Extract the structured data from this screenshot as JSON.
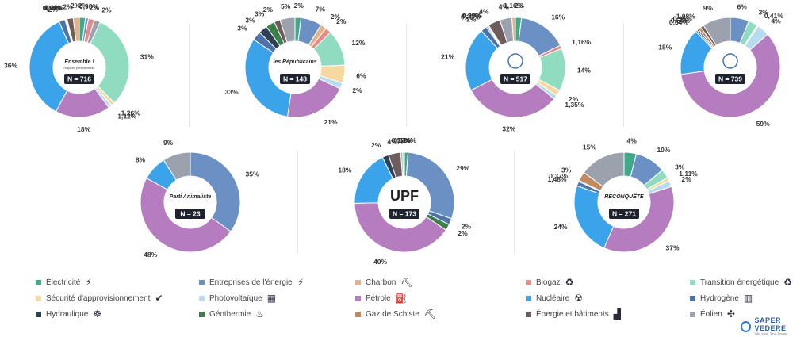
{
  "colors": {
    "electricite": "#3fa98a",
    "entreprises": "#6a90c4",
    "charbon": "#e0b48a",
    "biogaz": "#e88a85",
    "transition": "#8fdcc0",
    "securite": "#f6d9a0",
    "photovoltaique": "#b8dcef",
    "petrole": "#b57cc0",
    "nucleaire": "#3aa3ea",
    "hydrogene": "#4d72a8",
    "hydraulique": "#2f4155",
    "geothermie": "#3c7f4a",
    "gaz_schiste": "#c08a5e",
    "energie_batiments": "#6e5d5c",
    "eolien": "#9ba2ad"
  },
  "legend": [
    {
      "key": "electricite",
      "label": "Électricité",
      "icon": "plug-icon",
      "glyph": "⚡"
    },
    {
      "key": "entreprises",
      "label": "Entreprises de l'énergie",
      "icon": "lightning-icon",
      "glyph": "⚡"
    },
    {
      "key": "charbon",
      "label": "Charbon",
      "icon": "coal-cart-icon",
      "glyph": "⛏"
    },
    {
      "key": "biogaz",
      "label": "Biogaz",
      "icon": "biogas-plant-icon",
      "glyph": "♻"
    },
    {
      "key": "transition",
      "label": "Transition énergétique",
      "icon": "recycle-icon",
      "glyph": "♻"
    },
    {
      "key": "securite",
      "label": "Sécurité d'approvisionnement",
      "icon": "shield-icon",
      "glyph": "✔"
    },
    {
      "key": "photovoltaique",
      "label": "Photovoltaïque",
      "icon": "solar-panel-icon",
      "glyph": "▦"
    },
    {
      "key": "petrole",
      "label": "Pétrole",
      "icon": "fuel-pump-icon",
      "glyph": "⛽"
    },
    {
      "key": "nucleaire",
      "label": "Nucléaire",
      "icon": "nuclear-plant-icon",
      "glyph": "☢"
    },
    {
      "key": "hydrogene",
      "label": "Hydrogène",
      "icon": "hydrogen-tank-icon",
      "glyph": "▥"
    },
    {
      "key": "hydraulique",
      "label": "Hydraulique",
      "icon": "water-wheel-icon",
      "glyph": "☸"
    },
    {
      "key": "geothermie",
      "label": "Géothermie",
      "icon": "geothermal-icon",
      "glyph": "♨"
    },
    {
      "key": "gaz_schiste",
      "label": "Gaz de Schiste",
      "icon": "drill-icon",
      "glyph": "⛏"
    },
    {
      "key": "energie_batiments",
      "label": "Énergie et bâtiments",
      "icon": "buildings-icon",
      "glyph": "▟"
    },
    {
      "key": "eolien",
      "label": "Éolien",
      "icon": "wind-turbine-icon",
      "glyph": "✣"
    }
  ],
  "brand": {
    "name": "SAPER VEDERE",
    "tagline": "We see. You know."
  },
  "chart_data": [
    {
      "type": "pie",
      "title": "Ensemble !",
      "subtitle": "majorité présidentielle",
      "n_label": "N = 716",
      "logo": "ensemble-logo",
      "slices": [
        {
          "key": "electricite",
          "label": "2%",
          "value": 2
        },
        {
          "key": "entreprises",
          "label": "0,98%",
          "value": 0.98
        },
        {
          "key": "biogaz",
          "label": "2%",
          "value": 2
        },
        {
          "key": "eolien",
          "label": "2%",
          "value": 2
        },
        {
          "key": "transition",
          "label": "31%",
          "value": 31
        },
        {
          "key": "securite",
          "label": "1,26%",
          "value": 1.26
        },
        {
          "key": "photovoltaique",
          "label": "1,12%",
          "value": 1.12
        },
        {
          "key": "petrole",
          "label": "18%",
          "value": 18
        },
        {
          "key": "nucleaire",
          "label": "36%",
          "value": 36
        },
        {
          "key": "hydrogene",
          "label": "2%",
          "value": 2
        },
        {
          "key": "hydraulique",
          "label": "0,14%",
          "value": 0.14
        },
        {
          "key": "geothermie",
          "label": "0,28%",
          "value": 0.28
        },
        {
          "key": "gaz_schiste",
          "label": "0,28%",
          "value": 0.28
        },
        {
          "key": "energie_batiments",
          "label": "2%",
          "value": 2
        },
        {
          "key": "charbon",
          "label": "2%",
          "value": 2
        }
      ]
    },
    {
      "type": "pie",
      "title": "les Républicains",
      "n_label": "N = 148",
      "logo": "lr-logo",
      "slices": [
        {
          "key": "electricite",
          "label": "2%",
          "value": 2
        },
        {
          "key": "entreprises",
          "label": "7%",
          "value": 7
        },
        {
          "key": "charbon",
          "label": "2%",
          "value": 2
        },
        {
          "key": "biogaz",
          "label": "2%",
          "value": 2
        },
        {
          "key": "transition",
          "label": "12%",
          "value": 12
        },
        {
          "key": "securite",
          "label": "6%",
          "value": 6
        },
        {
          "key": "photovoltaique",
          "label": "2%",
          "value": 2
        },
        {
          "key": "petrole",
          "label": "21%",
          "value": 21
        },
        {
          "key": "nucleaire",
          "label": "33%",
          "value": 33
        },
        {
          "key": "hydrogene",
          "label": "3%",
          "value": 3
        },
        {
          "key": "hydraulique",
          "label": "3%",
          "value": 3
        },
        {
          "key": "geothermie",
          "label": "3%",
          "value": 3
        },
        {
          "key": "energie_batiments",
          "label": "2%",
          "value": 2
        },
        {
          "key": "eolien",
          "label": "5%",
          "value": 5
        }
      ]
    },
    {
      "type": "pie",
      "title": "",
      "n_label": "N = 517",
      "logo": "eelv-logo",
      "slices": [
        {
          "key": "electricite",
          "label": "2%",
          "value": 2
        },
        {
          "key": "entreprises",
          "label": "16%",
          "value": 16
        },
        {
          "key": "biogaz",
          "label": "1,16%",
          "value": 1.16
        },
        {
          "key": "transition",
          "label": "14%",
          "value": 14
        },
        {
          "key": "securite",
          "label": "2%",
          "value": 2
        },
        {
          "key": "photovoltaique",
          "label": "1,35%",
          "value": 1.35
        },
        {
          "key": "petrole",
          "label": "32%",
          "value": 32
        },
        {
          "key": "nucleaire",
          "label": "21%",
          "value": 21
        },
        {
          "key": "hydrogene",
          "label": "2%",
          "value": 2
        },
        {
          "key": "hydraulique",
          "label": "0,39%",
          "value": 0.39
        },
        {
          "key": "geothermie",
          "label": "0,39%",
          "value": 0.39
        },
        {
          "key": "gaz_schiste",
          "label": "0,19%",
          "value": 0.19
        },
        {
          "key": "energie_batiments",
          "label": "4%",
          "value": 4
        },
        {
          "key": "eolien",
          "label": "4%",
          "value": 4
        },
        {
          "key": "charbon",
          "label": "1,16%",
          "value": 1.16
        }
      ]
    },
    {
      "type": "pie",
      "title": "",
      "n_label": "N = 739",
      "logo": "rn-logo",
      "slices": [
        {
          "key": "entreprises",
          "label": "6%",
          "value": 6
        },
        {
          "key": "transition",
          "label": "3%",
          "value": 3
        },
        {
          "key": "securite",
          "label": "0,41%",
          "value": 0.41
        },
        {
          "key": "photovoltaique",
          "label": "4%",
          "value": 4
        },
        {
          "key": "petrole",
          "label": "59%",
          "value": 59
        },
        {
          "key": "nucleaire",
          "label": "15%",
          "value": 15
        },
        {
          "key": "hydrogene",
          "label": "0,54%",
          "value": 0.54
        },
        {
          "key": "hydraulique",
          "label": "0,54%",
          "value": 0.54
        },
        {
          "key": "gaz_schiste",
          "label": "0,95%",
          "value": 0.95
        },
        {
          "key": "energie_batiments",
          "label": "1,08%",
          "value": 1.08
        },
        {
          "key": "eolien",
          "label": "9%",
          "value": 9
        }
      ]
    },
    {
      "type": "pie",
      "title": "Parti Animaliste",
      "n_label": "N = 23",
      "logo": "animaliste-logo",
      "slices": [
        {
          "key": "entreprises",
          "label": "35%",
          "value": 35
        },
        {
          "key": "petrole",
          "label": "48%",
          "value": 48
        },
        {
          "key": "nucleaire",
          "label": "8%",
          "value": 8
        },
        {
          "key": "eolien",
          "label": "9%",
          "value": 9
        }
      ]
    },
    {
      "type": "pie",
      "title": "UPF",
      "n_label": "N = 173",
      "logo": "upf-logo",
      "slices": [
        {
          "key": "electricite",
          "label": "1,16%",
          "value": 1.16
        },
        {
          "key": "entreprises",
          "label": "29%",
          "value": 29
        },
        {
          "key": "hydrogene",
          "label": "2%",
          "value": 2
        },
        {
          "key": "geothermie",
          "label": "2%",
          "value": 2
        },
        {
          "key": "petrole",
          "label": "40%",
          "value": 40
        },
        {
          "key": "nucleaire",
          "label": "18%",
          "value": 18
        },
        {
          "key": "hydraulique",
          "label": "2%",
          "value": 2
        },
        {
          "key": "energie_batiments",
          "label": "4%",
          "value": 4
        },
        {
          "key": "eolien",
          "label": "0,58%",
          "value": 0.58
        },
        {
          "key": "transition",
          "label": "0,58%",
          "value": 0.58
        }
      ]
    },
    {
      "type": "pie",
      "title": "RECONQUÊTE",
      "n_label": "N = 271",
      "logo": "reconquete-logo",
      "slices": [
        {
          "key": "electricite",
          "label": "4%",
          "value": 4
        },
        {
          "key": "entreprises",
          "label": "10%",
          "value": 10
        },
        {
          "key": "transition",
          "label": "3%",
          "value": 3
        },
        {
          "key": "securite",
          "label": "1,11%",
          "value": 1.11
        },
        {
          "key": "photovoltaique",
          "label": "2%",
          "value": 2
        },
        {
          "key": "petrole",
          "label": "37%",
          "value": 37
        },
        {
          "key": "nucleaire",
          "label": "24%",
          "value": 24
        },
        {
          "key": "hydrogene",
          "label": "1,48%",
          "value": 1.48
        },
        {
          "key": "hydraulique",
          "label": "0,37%",
          "value": 0.37
        },
        {
          "key": "gaz_schiste",
          "label": "3%",
          "value": 3
        },
        {
          "key": "eolien",
          "label": "15%",
          "value": 15
        }
      ]
    }
  ]
}
